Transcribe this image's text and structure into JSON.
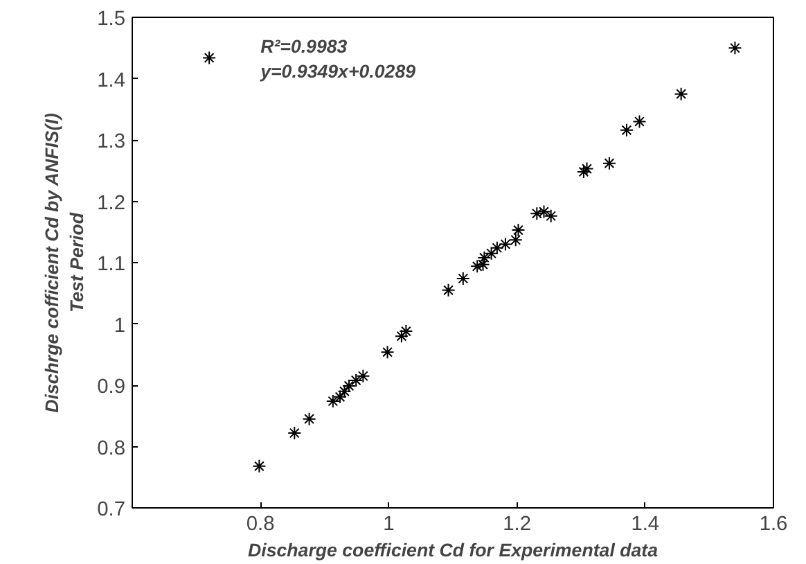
{
  "chart_data": {
    "type": "scatter",
    "xlabel": "Discharge coefficient Cd for Experimental data",
    "ylabel": "Dischrge cofficient Cd by ANFIS(I)\nTest Period",
    "annotations": [
      {
        "text": "R²=0.9983"
      },
      {
        "text": "y=0.9349x+0.0289"
      }
    ],
    "xlim": [
      0.6,
      1.6
    ],
    "xticks": [
      0.8,
      1,
      1.2,
      1.4,
      1.6
    ],
    "ylim": [
      0.7,
      1.5
    ],
    "yticks": [
      0.7,
      0.8,
      0.9,
      1,
      1.1,
      1.2,
      1.3,
      1.4,
      1.5
    ],
    "grid": false,
    "marker": "cross",
    "series": [
      {
        "color": "#000000",
        "x": [
          0.72,
          1.54,
          1.456,
          1.391,
          1.371,
          1.344,
          1.309,
          1.304,
          1.242,
          1.231,
          1.253,
          1.202,
          1.198,
          1.182,
          1.169,
          1.16,
          1.149,
          1.138,
          1.093,
          1.116,
          1.147,
          1.027,
          1.02,
          0.998,
          0.96,
          0.949,
          0.938,
          0.931,
          0.924,
          0.913,
          0.876,
          0.853,
          0.798
        ],
        "values": [
          1.434,
          1.45,
          1.375,
          1.33,
          1.316,
          1.262,
          1.253,
          1.248,
          1.183,
          1.18,
          1.176,
          1.153,
          1.137,
          1.13,
          1.124,
          1.115,
          1.108,
          1.094,
          1.055,
          1.074,
          1.097,
          0.988,
          0.98,
          0.954,
          0.915,
          0.908,
          0.899,
          0.89,
          0.881,
          0.874,
          0.845,
          0.822,
          0.768
        ]
      }
    ]
  }
}
